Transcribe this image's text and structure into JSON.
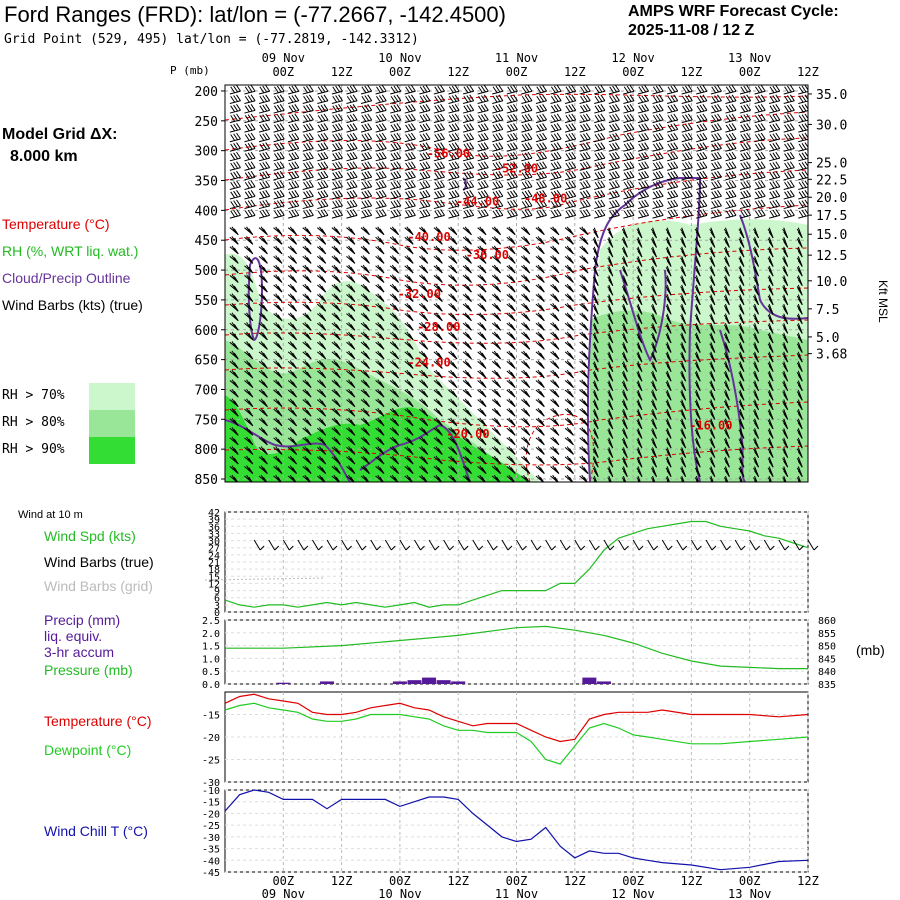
{
  "header": {
    "title": "Ford Ranges (FRD):  lat/lon = (-77.2667, -142.4500)",
    "subtitle": "Grid Point (529, 495) lat/lon = (-77.2819, -142.3312)",
    "cycle_line1": "AMPS WRF Forecast Cycle:",
    "cycle_line2": "2025-11-08 / 12  Z"
  },
  "model_grid": {
    "line1": "Model Grid ΔX:",
    "line2": "8.000 km"
  },
  "legend": {
    "temperature": "Temperature (°C)",
    "rh": "RH (%, WRT liq. wat.)",
    "cloud": "Cloud/Precip Outline",
    "wind_barbs": "Wind Barbs (kts) (true)",
    "rh70": "RH > 70%",
    "rh80": "RH > 80%",
    "rh90": "RH > 90%",
    "wind10m": "Wind at 10 m",
    "wind_spd": "Wind Spd (kts)",
    "barbs_true": "Wind Barbs (true)",
    "barbs_grid": "Wind Barbs (grid)",
    "precip1": "Precip (mm)",
    "precip2": "liq. equiv.",
    "precip3": "3-hr accum",
    "pressure": "Pressure (mb)",
    "temp2": "Temperature (°C)",
    "dewpoint": "Dewpoint (°C)",
    "windchill": "Wind Chill T (°C)",
    "kft_msl": "Kft MSL",
    "mb_unit": "(mb)",
    "p_unit": "P (mb)"
  },
  "colors": {
    "temperature": "#dd0000",
    "rh70": "#ccf7cc",
    "rh80": "#99e699",
    "rh90": "#33dd33",
    "cloud": "#663399",
    "wind_spd": "#22bb22",
    "pressure": "#22bb22",
    "precip": "#551a99",
    "dewpoint": "#22cc22",
    "windchill": "#1111aa",
    "barbs_grid": "#bbbbbb"
  },
  "time_axis": {
    "hour_labels": [
      "00Z",
      "12Z",
      "00Z",
      "12Z",
      "00Z",
      "12Z",
      "00Z",
      "12Z",
      "00Z",
      "12Z"
    ],
    "hours": [
      12,
      24,
      36,
      48,
      60,
      72,
      84,
      96,
      108,
      120
    ],
    "day_labels": [
      "09 Nov",
      "10 Nov",
      "11 Nov",
      "12 Nov",
      "13 Nov"
    ],
    "day_hours": [
      12,
      36,
      60,
      84,
      108
    ],
    "range_hours": [
      0,
      120
    ]
  },
  "chart_data": [
    {
      "type": "heatmap",
      "name": "vertical cross-section",
      "pressure_ticks": [
        "200",
        "250",
        "300",
        "350",
        "400",
        "450",
        "500",
        "550",
        "600",
        "650",
        "700",
        "750",
        "800",
        "850"
      ],
      "pressure_values": [
        200,
        250,
        300,
        350,
        400,
        450,
        500,
        550,
        600,
        650,
        700,
        750,
        800,
        850
      ],
      "height_ticks": [
        "35.0",
        "30.0",
        "25.0",
        "22.5",
        "20.0",
        "17.5",
        "15.0",
        "12.5",
        "10.0",
        "7.5",
        "5.0",
        "3.68"
      ],
      "height_pressures": [
        205,
        256,
        320,
        348,
        378,
        408,
        440,
        475,
        518,
        565,
        612,
        640
      ],
      "ylim": [
        190,
        855
      ],
      "temperature_labels": [
        {
          "text": "-56.00",
          "t": 46,
          "p": 305
        },
        {
          "text": "-52.00",
          "t": 60,
          "p": 330
        },
        {
          "text": "-48.00",
          "t": 66,
          "p": 380
        },
        {
          "text": "-44.00",
          "t": 52,
          "p": 385
        },
        {
          "text": "-40.00",
          "t": 42,
          "p": 445
        },
        {
          "text": "-36.00",
          "t": 54,
          "p": 475
        },
        {
          "text": "-32.00",
          "t": 40,
          "p": 540
        },
        {
          "text": "-28.00",
          "t": 44,
          "p": 595
        },
        {
          "text": "-24.00",
          "t": 42,
          "p": 655
        },
        {
          "text": "-20.00",
          "t": 50,
          "p": 775
        },
        {
          "text": "-16.00",
          "t": 100,
          "p": 760
        }
      ]
    },
    {
      "type": "line",
      "name": "surface wind",
      "ylabel_ticks": [
        "0",
        "3",
        "6",
        "9",
        "12",
        "15",
        "18",
        "21",
        "24",
        "27",
        "30",
        "33",
        "36",
        "39",
        "42"
      ],
      "ylim": [
        0,
        42
      ],
      "x": [
        0,
        3,
        6,
        9,
        12,
        15,
        18,
        21,
        24,
        27,
        30,
        33,
        36,
        39,
        42,
        45,
        48,
        51,
        54,
        57,
        60,
        63,
        66,
        69,
        72,
        75,
        78,
        81,
        84,
        87,
        90,
        93,
        96,
        99,
        102,
        105,
        108,
        111,
        114,
        117,
        120
      ],
      "values": [
        5,
        3,
        2,
        3,
        3,
        2,
        3,
        4,
        3,
        4,
        3,
        2,
        3,
        4,
        2,
        3,
        3,
        5,
        7,
        9,
        9,
        9,
        9,
        12,
        12,
        18,
        26,
        31,
        33,
        35,
        36,
        37,
        38,
        38,
        36,
        35,
        34,
        32,
        31,
        29,
        27
      ]
    },
    {
      "type": "line",
      "name": "precip and pressure",
      "ylabel_ticks": [
        "0.0",
        "0.5",
        "1.0",
        "1.5",
        "2.0",
        "2.5"
      ],
      "ylim": [
        0,
        2.5
      ],
      "y2label_ticks": [
        "835",
        "840",
        "845",
        "850",
        "855",
        "860"
      ],
      "y2lim": [
        835,
        860
      ],
      "precip_x": [
        12,
        21,
        36,
        39,
        42,
        45,
        48,
        75,
        78
      ],
      "precip_values": [
        0.05,
        0.1,
        0.1,
        0.15,
        0.25,
        0.15,
        0.1,
        0.25,
        0.1
      ],
      "pressure_x": [
        0,
        12,
        24,
        36,
        48,
        60,
        66,
        72,
        78,
        84,
        90,
        96,
        102,
        108,
        114,
        120
      ],
      "pressure_values": [
        849,
        849,
        850,
        852,
        854,
        857,
        857.5,
        856,
        854,
        851,
        847,
        844,
        842,
        841.5,
        841,
        841
      ]
    },
    {
      "type": "line",
      "name": "temperature and dewpoint",
      "ylabel_ticks": [
        "-30",
        "-25",
        "-20",
        "-15"
      ],
      "ylim": [
        -30,
        -10
      ],
      "x": [
        0,
        3,
        6,
        9,
        12,
        15,
        18,
        21,
        24,
        27,
        30,
        33,
        36,
        39,
        42,
        45,
        48,
        51,
        54,
        57,
        60,
        63,
        66,
        69,
        72,
        75,
        78,
        81,
        84,
        87,
        90,
        96,
        102,
        108,
        114,
        120
      ],
      "temperature": [
        -12.5,
        -11,
        -10.5,
        -11.5,
        -12,
        -12.5,
        -14.5,
        -15,
        -15,
        -14.5,
        -13.5,
        -13,
        -12.5,
        -13.5,
        -14,
        -15.5,
        -16.5,
        -17.5,
        -17,
        -17,
        -17,
        -18.5,
        -20,
        -21,
        -20.5,
        -16,
        -15,
        -14.5,
        -14.5,
        -14.5,
        -14,
        -15,
        -15,
        -15,
        -15.5,
        -15
      ],
      "dewpoint": [
        -14,
        -13,
        -12.5,
        -13.5,
        -14,
        -14.5,
        -16,
        -16.5,
        -16.5,
        -16,
        -15,
        -15,
        -15,
        -15.5,
        -16,
        -17.5,
        -18.5,
        -18.5,
        -19,
        -19,
        -19,
        -21,
        -25,
        -26,
        -22,
        -18,
        -17,
        -18,
        -19.5,
        -20,
        -20.5,
        -21.5,
        -21.5,
        -21,
        -20.5,
        -20
      ]
    },
    {
      "type": "line",
      "name": "wind chill",
      "ylabel_ticks": [
        "-45",
        "-40",
        "-35",
        "-30",
        "-25",
        "-20",
        "-15",
        "-10"
      ],
      "ylim": [
        -45,
        -10
      ],
      "x": [
        0,
        3,
        6,
        9,
        12,
        15,
        18,
        21,
        24,
        27,
        30,
        33,
        36,
        39,
        42,
        45,
        48,
        51,
        54,
        57,
        60,
        63,
        66,
        69,
        72,
        75,
        78,
        81,
        84,
        87,
        90,
        96,
        102,
        108,
        114,
        120
      ],
      "values": [
        -19,
        -12,
        -10,
        -11,
        -14,
        -14,
        -14,
        -18,
        -14,
        -14,
        -14,
        -14,
        -17,
        -15,
        -13,
        -13,
        -14,
        -20,
        -25,
        -30,
        -32,
        -31,
        -26,
        -34,
        -39,
        -36,
        -37,
        -37,
        -39,
        -40,
        -41,
        -42,
        -44,
        -43,
        -40.5,
        -40
      ]
    }
  ]
}
